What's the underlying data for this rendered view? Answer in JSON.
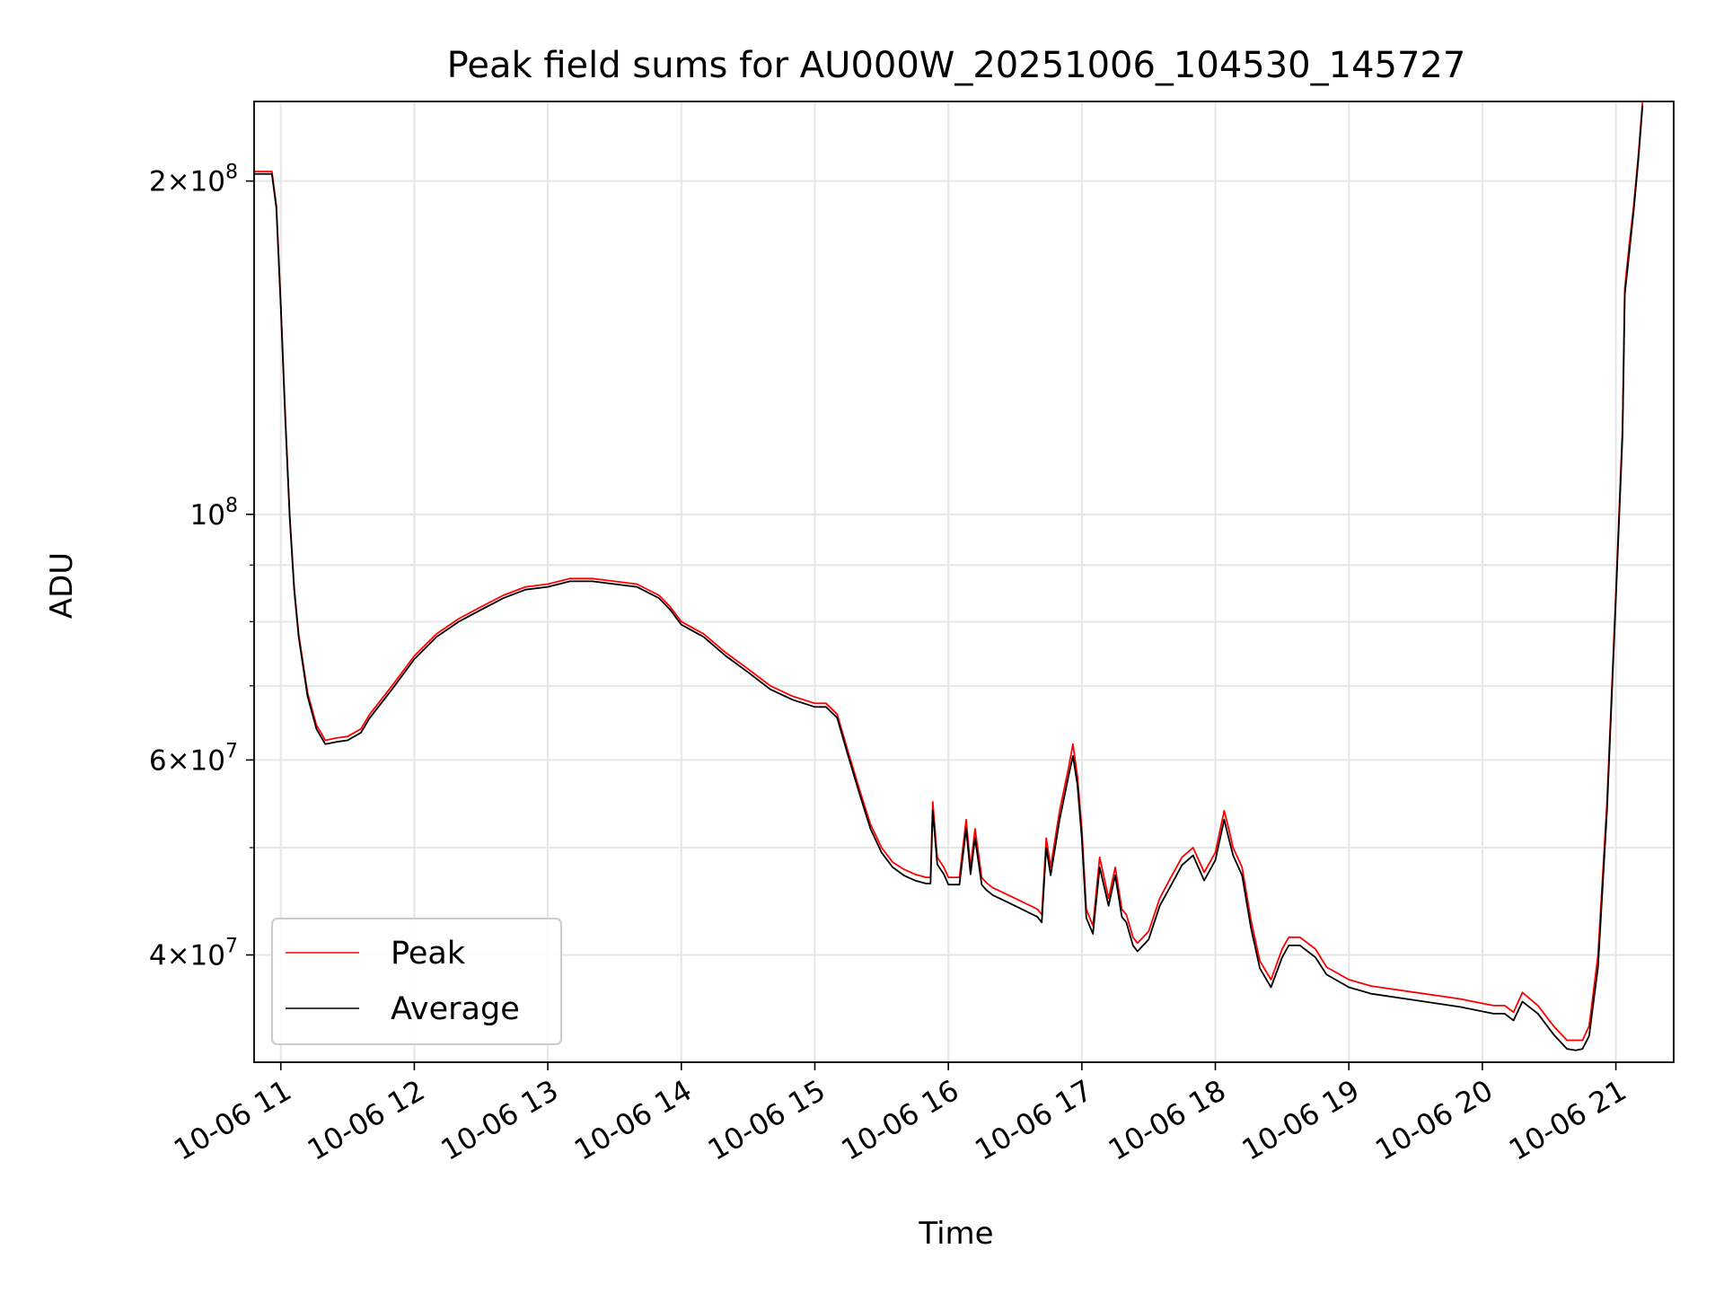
{
  "chart_data": {
    "type": "line",
    "title": "Peak field sums for AU000W_20251006_104530_145727",
    "xlabel": "Time",
    "ylabel": "ADU",
    "y_scale": "log",
    "ylim": [
      32000000,
      236000000
    ],
    "xlim": [
      "2025-10-06 10:48",
      "2025-10-06 21:26"
    ],
    "grid": true,
    "legend_position": "lower left",
    "x_ticks": [
      {
        "value": "2025-10-06 11:00",
        "label": "10-06 11"
      },
      {
        "value": "2025-10-06 12:00",
        "label": "10-06 12"
      },
      {
        "value": "2025-10-06 13:00",
        "label": "10-06 13"
      },
      {
        "value": "2025-10-06 14:00",
        "label": "10-06 14"
      },
      {
        "value": "2025-10-06 15:00",
        "label": "10-06 15"
      },
      {
        "value": "2025-10-06 16:00",
        "label": "10-06 16"
      },
      {
        "value": "2025-10-06 17:00",
        "label": "10-06 17"
      },
      {
        "value": "2025-10-06 18:00",
        "label": "10-06 18"
      },
      {
        "value": "2025-10-06 19:00",
        "label": "10-06 19"
      },
      {
        "value": "2025-10-06 20:00",
        "label": "10-06 20"
      },
      {
        "value": "2025-10-06 21:00",
        "label": "10-06 21"
      }
    ],
    "y_major_ticks": [
      {
        "value": 40000000,
        "mantissa": "4",
        "exp": "7"
      },
      {
        "value": 60000000,
        "mantissa": "6",
        "exp": "7"
      },
      {
        "value": 100000000,
        "mantissa": "",
        "exp": "8"
      },
      {
        "value": 200000000,
        "mantissa": "2",
        "exp": "8"
      }
    ],
    "y_minor_ticks": [
      50000000,
      70000000,
      80000000,
      90000000
    ],
    "series": [
      {
        "name": "Peak",
        "color": "#ff0000",
        "x": [
          "2025-10-06 10:48",
          "2025-10-06 10:56",
          "2025-10-06 10:58",
          "2025-10-06 11:00",
          "2025-10-06 11:02",
          "2025-10-06 11:04",
          "2025-10-06 11:06",
          "2025-10-06 11:08",
          "2025-10-06 11:12",
          "2025-10-06 11:16",
          "2025-10-06 11:20",
          "2025-10-06 11:25",
          "2025-10-06 11:30",
          "2025-10-06 11:36",
          "2025-10-06 11:40",
          "2025-10-06 11:50",
          "2025-10-06 12:00",
          "2025-10-06 12:10",
          "2025-10-06 12:20",
          "2025-10-06 12:30",
          "2025-10-06 12:40",
          "2025-10-06 12:50",
          "2025-10-06 13:00",
          "2025-10-06 13:10",
          "2025-10-06 13:20",
          "2025-10-06 13:30",
          "2025-10-06 13:40",
          "2025-10-06 13:50",
          "2025-10-06 13:55",
          "2025-10-06 14:00",
          "2025-10-06 14:10",
          "2025-10-06 14:20",
          "2025-10-06 14:30",
          "2025-10-06 14:40",
          "2025-10-06 14:50",
          "2025-10-06 15:00",
          "2025-10-06 15:05",
          "2025-10-06 15:10",
          "2025-10-06 15:15",
          "2025-10-06 15:20",
          "2025-10-06 15:25",
          "2025-10-06 15:30",
          "2025-10-06 15:35",
          "2025-10-06 15:40",
          "2025-10-06 15:45",
          "2025-10-06 15:50",
          "2025-10-06 15:52",
          "2025-10-06 15:53",
          "2025-10-06 15:55",
          "2025-10-06 15:58",
          "2025-10-06 16:00",
          "2025-10-06 16:05",
          "2025-10-06 16:08",
          "2025-10-06 16:10",
          "2025-10-06 16:12",
          "2025-10-06 16:15",
          "2025-10-06 16:17",
          "2025-10-06 16:20",
          "2025-10-06 16:30",
          "2025-10-06 16:40",
          "2025-10-06 16:42",
          "2025-10-06 16:44",
          "2025-10-06 16:46",
          "2025-10-06 16:50",
          "2025-10-06 16:54",
          "2025-10-06 16:56",
          "2025-10-06 16:58",
          "2025-10-06 17:00",
          "2025-10-06 17:02",
          "2025-10-06 17:05",
          "2025-10-06 17:08",
          "2025-10-06 17:12",
          "2025-10-06 17:15",
          "2025-10-06 17:18",
          "2025-10-06 17:20",
          "2025-10-06 17:23",
          "2025-10-06 17:25",
          "2025-10-06 17:30",
          "2025-10-06 17:35",
          "2025-10-06 17:40",
          "2025-10-06 17:45",
          "2025-10-06 17:50",
          "2025-10-06 17:55",
          "2025-10-06 18:00",
          "2025-10-06 18:04",
          "2025-10-06 18:06",
          "2025-10-06 18:08",
          "2025-10-06 18:12",
          "2025-10-06 18:16",
          "2025-10-06 18:20",
          "2025-10-06 18:25",
          "2025-10-06 18:30",
          "2025-10-06 18:33",
          "2025-10-06 18:38",
          "2025-10-06 18:45",
          "2025-10-06 18:50",
          "2025-10-06 18:55",
          "2025-10-06 19:00",
          "2025-10-06 19:10",
          "2025-10-06 19:30",
          "2025-10-06 19:50",
          "2025-10-06 20:05",
          "2025-10-06 20:10",
          "2025-10-06 20:14",
          "2025-10-06 20:18",
          "2025-10-06 20:25",
          "2025-10-06 20:32",
          "2025-10-06 20:38",
          "2025-10-06 20:42",
          "2025-10-06 20:45",
          "2025-10-06 20:48",
          "2025-10-06 20:52",
          "2025-10-06 20:56",
          "2025-10-06 21:00",
          "2025-10-06 21:03",
          "2025-10-06 21:04",
          "2025-10-06 21:06",
          "2025-10-06 21:08",
          "2025-10-06 21:10",
          "2025-10-06 21:12"
        ],
        "values": [
          204000000,
          204000000,
          190000000,
          155000000,
          123000000,
          100000000,
          86000000,
          78000000,
          69000000,
          64500000,
          62500000,
          62800000,
          63000000,
          64000000,
          66000000,
          70000000,
          74500000,
          78000000,
          80500000,
          82500000,
          84500000,
          86000000,
          86500000,
          87500000,
          87500000,
          87000000,
          86500000,
          84500000,
          82500000,
          80000000,
          78000000,
          75000000,
          72500000,
          70000000,
          68500000,
          67500000,
          67500000,
          66000000,
          61000000,
          56500000,
          52500000,
          50000000,
          48500000,
          47800000,
          47300000,
          47000000,
          47000000,
          55000000,
          49000000,
          48000000,
          47000000,
          47000000,
          53000000,
          48000000,
          52000000,
          47000000,
          46500000,
          46000000,
          45000000,
          44000000,
          43500000,
          51000000,
          48000000,
          54000000,
          59000000,
          62000000,
          58000000,
          52000000,
          44000000,
          42500000,
          49000000,
          45000000,
          48000000,
          44000000,
          43500000,
          41500000,
          41000000,
          42000000,
          45000000,
          47000000,
          49000000,
          50000000,
          47500000,
          49500000,
          54000000,
          52000000,
          50000000,
          48000000,
          43000000,
          39500000,
          38000000,
          40500000,
          41500000,
          41500000,
          40500000,
          39000000,
          38500000,
          38000000,
          37500000,
          37000000,
          36500000,
          36000000,
          36000000,
          35500000,
          37000000,
          36000000,
          34500000,
          33500000,
          33500000,
          33500000,
          34500000,
          40000000,
          55000000,
          85000000,
          120000000,
          160000000,
          175000000,
          190000000,
          210000000,
          236000000
        ]
      },
      {
        "name": "Average",
        "color": "#000000",
        "x": [
          "2025-10-06 10:48",
          "2025-10-06 10:56",
          "2025-10-06 10:58",
          "2025-10-06 11:00",
          "2025-10-06 11:02",
          "2025-10-06 11:04",
          "2025-10-06 11:06",
          "2025-10-06 11:08",
          "2025-10-06 11:12",
          "2025-10-06 11:16",
          "2025-10-06 11:20",
          "2025-10-06 11:25",
          "2025-10-06 11:30",
          "2025-10-06 11:36",
          "2025-10-06 11:40",
          "2025-10-06 11:50",
          "2025-10-06 12:00",
          "2025-10-06 12:10",
          "2025-10-06 12:20",
          "2025-10-06 12:30",
          "2025-10-06 12:40",
          "2025-10-06 12:50",
          "2025-10-06 13:00",
          "2025-10-06 13:10",
          "2025-10-06 13:20",
          "2025-10-06 13:30",
          "2025-10-06 13:40",
          "2025-10-06 13:50",
          "2025-10-06 13:55",
          "2025-10-06 14:00",
          "2025-10-06 14:10",
          "2025-10-06 14:20",
          "2025-10-06 14:30",
          "2025-10-06 14:40",
          "2025-10-06 14:50",
          "2025-10-06 15:00",
          "2025-10-06 15:05",
          "2025-10-06 15:10",
          "2025-10-06 15:15",
          "2025-10-06 15:20",
          "2025-10-06 15:25",
          "2025-10-06 15:30",
          "2025-10-06 15:35",
          "2025-10-06 15:40",
          "2025-10-06 15:45",
          "2025-10-06 15:50",
          "2025-10-06 15:52",
          "2025-10-06 15:53",
          "2025-10-06 15:55",
          "2025-10-06 15:58",
          "2025-10-06 16:00",
          "2025-10-06 16:05",
          "2025-10-06 16:08",
          "2025-10-06 16:10",
          "2025-10-06 16:12",
          "2025-10-06 16:15",
          "2025-10-06 16:17",
          "2025-10-06 16:20",
          "2025-10-06 16:30",
          "2025-10-06 16:40",
          "2025-10-06 16:42",
          "2025-10-06 16:44",
          "2025-10-06 16:46",
          "2025-10-06 16:50",
          "2025-10-06 16:54",
          "2025-10-06 16:56",
          "2025-10-06 16:58",
          "2025-10-06 17:00",
          "2025-10-06 17:02",
          "2025-10-06 17:05",
          "2025-10-06 17:08",
          "2025-10-06 17:12",
          "2025-10-06 17:15",
          "2025-10-06 17:18",
          "2025-10-06 17:20",
          "2025-10-06 17:23",
          "2025-10-06 17:25",
          "2025-10-06 17:30",
          "2025-10-06 17:35",
          "2025-10-06 17:40",
          "2025-10-06 17:45",
          "2025-10-06 17:50",
          "2025-10-06 17:55",
          "2025-10-06 18:00",
          "2025-10-06 18:04",
          "2025-10-06 18:06",
          "2025-10-06 18:08",
          "2025-10-06 18:12",
          "2025-10-06 18:16",
          "2025-10-06 18:20",
          "2025-10-06 18:25",
          "2025-10-06 18:30",
          "2025-10-06 18:33",
          "2025-10-06 18:38",
          "2025-10-06 18:45",
          "2025-10-06 18:50",
          "2025-10-06 18:55",
          "2025-10-06 19:00",
          "2025-10-06 19:10",
          "2025-10-06 19:30",
          "2025-10-06 19:50",
          "2025-10-06 20:05",
          "2025-10-06 20:10",
          "2025-10-06 20:14",
          "2025-10-06 20:18",
          "2025-10-06 20:25",
          "2025-10-06 20:32",
          "2025-10-06 20:38",
          "2025-10-06 20:42",
          "2025-10-06 20:45",
          "2025-10-06 20:48",
          "2025-10-06 20:52",
          "2025-10-06 20:56",
          "2025-10-06 21:00",
          "2025-10-06 21:03",
          "2025-10-06 21:04",
          "2025-10-06 21:06",
          "2025-10-06 21:08",
          "2025-10-06 21:10",
          "2025-10-06 21:12"
        ],
        "values": [
          203000000,
          203000000,
          189000000,
          154000000,
          122000000,
          99500000,
          85500000,
          77500000,
          68500000,
          64000000,
          62000000,
          62300000,
          62500000,
          63500000,
          65500000,
          69500000,
          74000000,
          77500000,
          80000000,
          82000000,
          84000000,
          85500000,
          86000000,
          87000000,
          87000000,
          86500000,
          86000000,
          84000000,
          82000000,
          79500000,
          77500000,
          74500000,
          72000000,
          69500000,
          68000000,
          67000000,
          67000000,
          65500000,
          60500000,
          56000000,
          52000000,
          49500000,
          48000000,
          47200000,
          46700000,
          46400000,
          46400000,
          54000000,
          48300000,
          47300000,
          46300000,
          46300000,
          52000000,
          47300000,
          51000000,
          46300000,
          45800000,
          45300000,
          44300000,
          43300000,
          42800000,
          50000000,
          47200000,
          53000000,
          58000000,
          60500000,
          57000000,
          51000000,
          43200000,
          41800000,
          48000000,
          44300000,
          47200000,
          43300000,
          42800000,
          40800000,
          40300000,
          41300000,
          44300000,
          46200000,
          48200000,
          49200000,
          46700000,
          48700000,
          53000000,
          51000000,
          49200000,
          47200000,
          42300000,
          38900000,
          37400000,
          39800000,
          40800000,
          40800000,
          39800000,
          38400000,
          37900000,
          37400000,
          36900000,
          36400000,
          35900000,
          35400000,
          35400000,
          34900000,
          36300000,
          35400000,
          33900000,
          32900000,
          32800000,
          32900000,
          33800000,
          39000000,
          54000000,
          84000000,
          118000000,
          158000000,
          172000000,
          188000000,
          208000000,
          234000000
        ]
      }
    ]
  }
}
